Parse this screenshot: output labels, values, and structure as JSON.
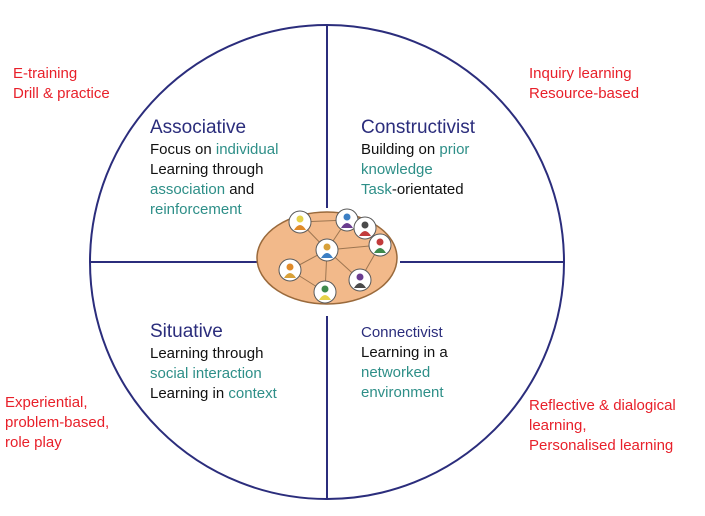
{
  "colors": {
    "circle": "#2b2d7c",
    "title": "#2b2d7c",
    "highlight": "#2e8f88",
    "side_text": "#e8202a",
    "body_text": "#111111",
    "hub_fill": "#f2b98a",
    "hub_stroke": "#9a6a3c"
  },
  "side_labels": {
    "top_left": [
      "E-training",
      "Drill & practice"
    ],
    "top_right": [
      "Inquiry learning",
      "Resource-based"
    ],
    "bottom_left": [
      "Experiential,",
      "problem-based,",
      "role play"
    ],
    "bottom_right": [
      "Reflective & dialogical",
      "learning,",
      "Personalised learning"
    ]
  },
  "associative": {
    "title": "Associative",
    "l1": "Focus on ",
    "l1_hl": "individual",
    "l2": "Learning through",
    "l3_hl": "association",
    "l3": " and",
    "l4_hl": "reinforcement"
  },
  "constructivist": {
    "title": "Constructivist",
    "l1": "Building on ",
    "l1_hl": "prior",
    "l2_hl": "knowledge",
    "l3_hl": "Task",
    "l3": "-orientated"
  },
  "situative": {
    "title": "Situative",
    "l1": "Learning through",
    "l2_hl": "social interaction",
    "l3": "Learning in ",
    "l3_hl": "context"
  },
  "connectivist": {
    "title": "Connectivist",
    "l1": "Learning in a",
    "l2_hl": "networked",
    "l3_hl": "environment"
  },
  "hub": {
    "icon": "network-people-icon",
    "node_colors": [
      "#e6d24a",
      "#3c7fc4",
      "#c23b3b",
      "#e08a2a",
      "#6a3d8f",
      "#3f8a4c",
      "#d8a13a",
      "#4a4a4a"
    ]
  }
}
